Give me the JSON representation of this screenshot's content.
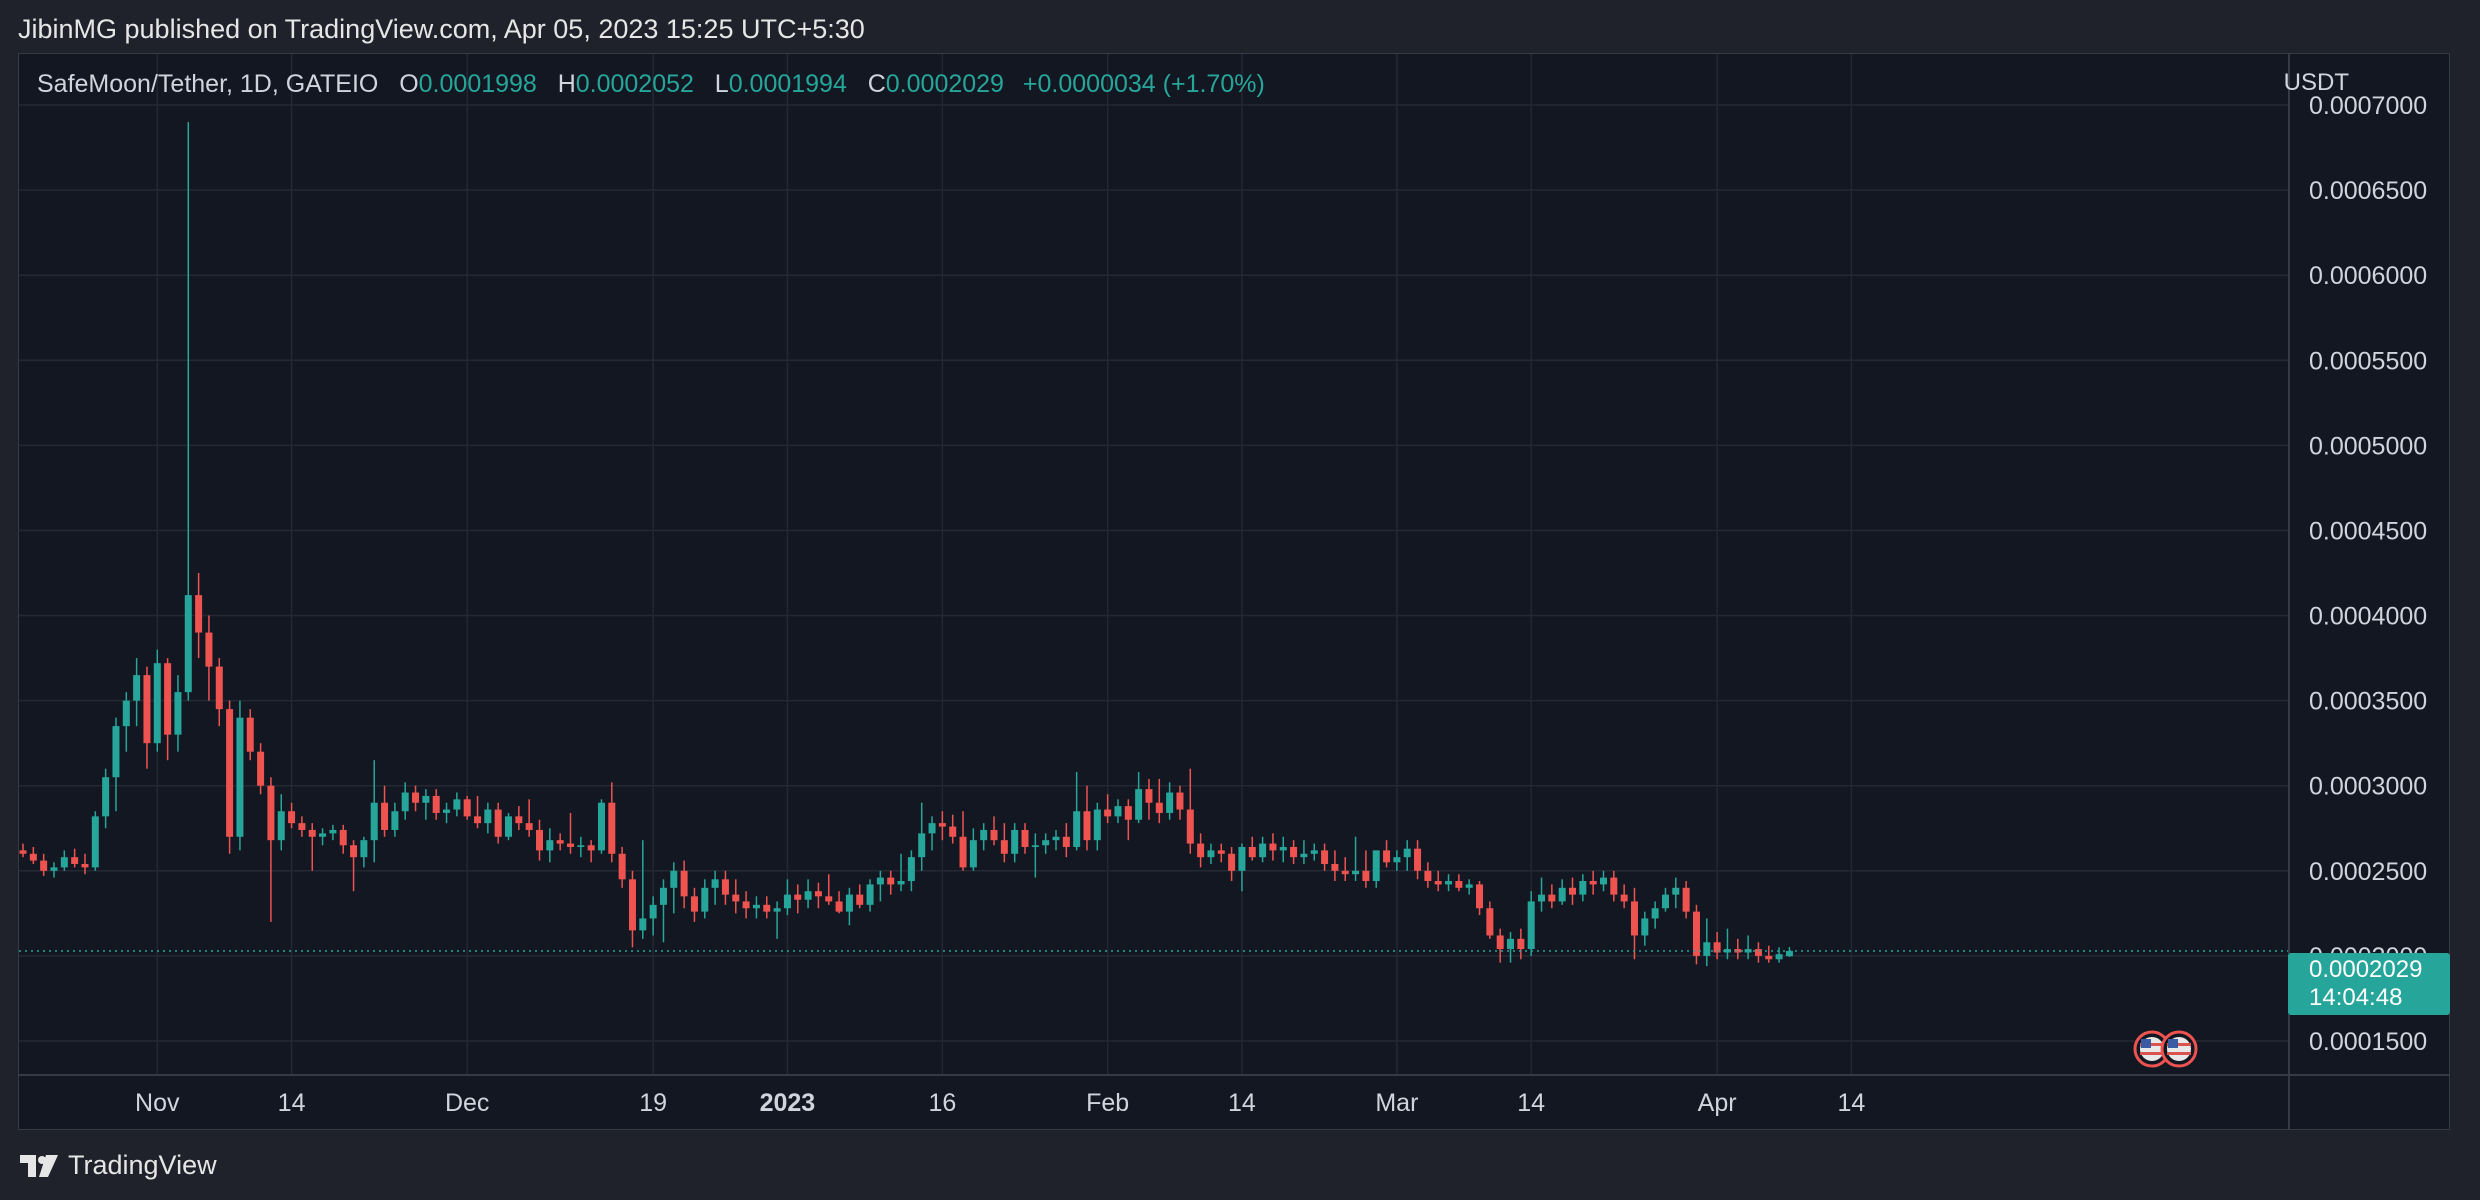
{
  "header": {
    "published": "JibinMG published on TradingView.com, Apr 05, 2023 15:25 UTC+5:30"
  },
  "legend": {
    "symbol": "SafeMoon/Tether, 1D, GATEIO",
    "o_label": "O",
    "o_value": "0.0001998",
    "h_label": "H",
    "h_value": "0.0002052",
    "l_label": "L",
    "l_value": "0.0001994",
    "c_label": "C",
    "c_value": "0.0002029",
    "change": "+0.0000034 (+1.70%)"
  },
  "currency": "USDT",
  "last_price": {
    "value": "0.0002029",
    "countdown": "14:04:48"
  },
  "footer": {
    "brand": "TradingView"
  },
  "colors": {
    "up": "#26a69a",
    "down": "#ef5350",
    "grid": "#242833",
    "axis_text": "#d1d4dc",
    "background": "#131722"
  },
  "chart_data": {
    "type": "candlestick",
    "ylim": [
      0.00013,
      0.00073
    ],
    "yticks": [
      0.00015,
      0.0002,
      0.00025,
      0.0003,
      0.00035,
      0.0004,
      0.00045,
      0.0005,
      0.00055,
      0.0006,
      0.00065,
      0.0007
    ],
    "ytick_labels": [
      "0.0001500",
      "0.0002000",
      "0.0002500",
      "0.0003000",
      "0.0003500",
      "0.0004000",
      "0.0004500",
      "0.0005000",
      "0.0005500",
      "0.0006000",
      "0.0006500",
      "0.0007000"
    ],
    "xtick_labels": [
      {
        "label": "Nov",
        "index": 13
      },
      {
        "label": "14",
        "index": 26
      },
      {
        "label": "Dec",
        "index": 43
      },
      {
        "label": "19",
        "index": 61
      },
      {
        "label": "2023",
        "index": 74,
        "bold": true
      },
      {
        "label": "16",
        "index": 89
      },
      {
        "label": "Feb",
        "index": 105
      },
      {
        "label": "14",
        "index": 118
      },
      {
        "label": "Mar",
        "index": 133
      },
      {
        "label": "14",
        "index": 146
      },
      {
        "label": "Apr",
        "index": 164
      },
      {
        "label": "14",
        "index": 177
      }
    ],
    "last_price": 0.0002029,
    "ohlc": [
      [
        0.000262,
        0.000266,
        0.000258,
        0.00026
      ],
      [
        0.00026,
        0.000264,
        0.000254,
        0.000256
      ],
      [
        0.000256,
        0.00026,
        0.000247,
        0.00025
      ],
      [
        0.00025,
        0.000255,
        0.000246,
        0.000252
      ],
      [
        0.000252,
        0.000262,
        0.00025,
        0.000258
      ],
      [
        0.000258,
        0.000263,
        0.000252,
        0.000254
      ],
      [
        0.000254,
        0.00026,
        0.000248,
        0.000252
      ],
      [
        0.000252,
        0.000285,
        0.00025,
        0.000282
      ],
      [
        0.000282,
        0.00031,
        0.000275,
        0.000305
      ],
      [
        0.000305,
        0.00034,
        0.000285,
        0.000335
      ],
      [
        0.000335,
        0.000355,
        0.00032,
        0.00035
      ],
      [
        0.00035,
        0.000375,
        0.000335,
        0.000365
      ],
      [
        0.000365,
        0.00037,
        0.00031,
        0.000325
      ],
      [
        0.000325,
        0.00038,
        0.00032,
        0.000372
      ],
      [
        0.000372,
        0.000375,
        0.000315,
        0.00033
      ],
      [
        0.00033,
        0.000365,
        0.00032,
        0.000355
      ],
      [
        0.000355,
        0.00069,
        0.00035,
        0.000412
      ],
      [
        0.000412,
        0.000425,
        0.000375,
        0.00039
      ],
      [
        0.00039,
        0.0004,
        0.00035,
        0.00037
      ],
      [
        0.00037,
        0.000375,
        0.000335,
        0.000345
      ],
      [
        0.000345,
        0.00035,
        0.00026,
        0.00027
      ],
      [
        0.00027,
        0.00035,
        0.000262,
        0.00034
      ],
      [
        0.00034,
        0.000345,
        0.000315,
        0.00032
      ],
      [
        0.00032,
        0.000325,
        0.000295,
        0.0003
      ],
      [
        0.0003,
        0.000305,
        0.00022,
        0.000268
      ],
      [
        0.000268,
        0.000295,
        0.000262,
        0.000285
      ],
      [
        0.000285,
        0.00029,
        0.000275,
        0.000278
      ],
      [
        0.000278,
        0.000282,
        0.00027,
        0.000274
      ],
      [
        0.000274,
        0.000278,
        0.00025,
        0.00027
      ],
      [
        0.00027,
        0.000275,
        0.000265,
        0.000272
      ],
      [
        0.000272,
        0.000277,
        0.000268,
        0.000274
      ],
      [
        0.000274,
        0.000277,
        0.00026,
        0.000265
      ],
      [
        0.000265,
        0.000268,
        0.000238,
        0.000258
      ],
      [
        0.000258,
        0.00027,
        0.000252,
        0.000268
      ],
      [
        0.000268,
        0.000315,
        0.000255,
        0.00029
      ],
      [
        0.00029,
        0.0003,
        0.00027,
        0.000274
      ],
      [
        0.000274,
        0.00029,
        0.00027,
        0.000285
      ],
      [
        0.000285,
        0.000302,
        0.00028,
        0.000296
      ],
      [
        0.000296,
        0.0003,
        0.000285,
        0.00029
      ],
      [
        0.00029,
        0.000298,
        0.00028,
        0.000294
      ],
      [
        0.000294,
        0.000298,
        0.00028,
        0.000284
      ],
      [
        0.000284,
        0.00029,
        0.000278,
        0.000286
      ],
      [
        0.000286,
        0.000296,
        0.000282,
        0.000292
      ],
      [
        0.000292,
        0.000294,
        0.00028,
        0.000282
      ],
      [
        0.000282,
        0.000294,
        0.000275,
        0.000278
      ],
      [
        0.000278,
        0.00029,
        0.000272,
        0.000286
      ],
      [
        0.000286,
        0.00029,
        0.000266,
        0.00027
      ],
      [
        0.00027,
        0.000284,
        0.000268,
        0.000282
      ],
      [
        0.000282,
        0.000288,
        0.000274,
        0.000278
      ],
      [
        0.000278,
        0.000292,
        0.00027,
        0.000274
      ],
      [
        0.000274,
        0.00028,
        0.000256,
        0.000262
      ],
      [
        0.000262,
        0.000275,
        0.000255,
        0.000268
      ],
      [
        0.000268,
        0.000272,
        0.000262,
        0.000266
      ],
      [
        0.000266,
        0.000284,
        0.00026,
        0.000264
      ],
      [
        0.000264,
        0.00027,
        0.000258,
        0.000265
      ],
      [
        0.000265,
        0.000268,
        0.000255,
        0.000262
      ],
      [
        0.000262,
        0.000292,
        0.00026,
        0.00029
      ],
      [
        0.00029,
        0.000302,
        0.000255,
        0.00026
      ],
      [
        0.00026,
        0.000264,
        0.00024,
        0.000245
      ],
      [
        0.000245,
        0.00025,
        0.000205,
        0.000215
      ],
      [
        0.000215,
        0.000268,
        0.00021,
        0.000222
      ],
      [
        0.000222,
        0.000235,
        0.000212,
        0.00023
      ],
      [
        0.00023,
        0.000245,
        0.000208,
        0.00024
      ],
      [
        0.00024,
        0.000255,
        0.000225,
        0.00025
      ],
      [
        0.00025,
        0.000256,
        0.000228,
        0.000235
      ],
      [
        0.000235,
        0.00024,
        0.00022,
        0.000226
      ],
      [
        0.000226,
        0.000245,
        0.000222,
        0.00024
      ],
      [
        0.00024,
        0.00025,
        0.00023,
        0.000245
      ],
      [
        0.000245,
        0.00025,
        0.00023,
        0.000236
      ],
      [
        0.000236,
        0.000245,
        0.000225,
        0.000232
      ],
      [
        0.000232,
        0.000238,
        0.000222,
        0.000228
      ],
      [
        0.000228,
        0.000235,
        0.000222,
        0.00023
      ],
      [
        0.00023,
        0.000235,
        0.000222,
        0.000226
      ],
      [
        0.000226,
        0.000232,
        0.00021,
        0.000228
      ],
      [
        0.000228,
        0.000245,
        0.000224,
        0.000236
      ],
      [
        0.000236,
        0.000242,
        0.000225,
        0.000233
      ],
      [
        0.000233,
        0.000245,
        0.000228,
        0.000238
      ],
      [
        0.000238,
        0.000243,
        0.000228,
        0.000235
      ],
      [
        0.000235,
        0.000248,
        0.00023,
        0.000232
      ],
      [
        0.000232,
        0.000238,
        0.000225,
        0.000226
      ],
      [
        0.000226,
        0.00024,
        0.000218,
        0.000236
      ],
      [
        0.000236,
        0.000242,
        0.000228,
        0.00023
      ],
      [
        0.00023,
        0.000245,
        0.000226,
        0.000242
      ],
      [
        0.000242,
        0.00025,
        0.000232,
        0.000246
      ],
      [
        0.000246,
        0.00025,
        0.000236,
        0.000242
      ],
      [
        0.000242,
        0.00026,
        0.000238,
        0.000244
      ],
      [
        0.000244,
        0.000262,
        0.000238,
        0.000258
      ],
      [
        0.000258,
        0.00029,
        0.00025,
        0.000272
      ],
      [
        0.000272,
        0.000282,
        0.000262,
        0.000278
      ],
      [
        0.000278,
        0.000285,
        0.000268,
        0.000276
      ],
      [
        0.000276,
        0.000283,
        0.000266,
        0.00027
      ],
      [
        0.00027,
        0.000285,
        0.00025,
        0.000252
      ],
      [
        0.000252,
        0.000275,
        0.00025,
        0.000268
      ],
      [
        0.000268,
        0.000278,
        0.000262,
        0.000274
      ],
      [
        0.000274,
        0.000282,
        0.000265,
        0.000268
      ],
      [
        0.000268,
        0.000278,
        0.000255,
        0.00026
      ],
      [
        0.00026,
        0.000278,
        0.000255,
        0.000274
      ],
      [
        0.000274,
        0.000278,
        0.00026,
        0.000264
      ],
      [
        0.000264,
        0.000272,
        0.000246,
        0.000265
      ],
      [
        0.000265,
        0.000272,
        0.00026,
        0.000268
      ],
      [
        0.000268,
        0.000274,
        0.000262,
        0.00027
      ],
      [
        0.00027,
        0.000278,
        0.000258,
        0.000264
      ],
      [
        0.000264,
        0.000308,
        0.000262,
        0.000285
      ],
      [
        0.000285,
        0.0003,
        0.000262,
        0.000268
      ],
      [
        0.000268,
        0.00029,
        0.000262,
        0.000286
      ],
      [
        0.000286,
        0.000295,
        0.000278,
        0.000282
      ],
      [
        0.000282,
        0.000292,
        0.000278,
        0.000288
      ],
      [
        0.000288,
        0.000292,
        0.000268,
        0.00028
      ],
      [
        0.00028,
        0.000308,
        0.000278,
        0.000298
      ],
      [
        0.000298,
        0.000304,
        0.00028,
        0.00029
      ],
      [
        0.00029,
        0.000304,
        0.000278,
        0.000284
      ],
      [
        0.000284,
        0.000302,
        0.00028,
        0.000296
      ],
      [
        0.000296,
        0.0003,
        0.00028,
        0.000286
      ],
      [
        0.000286,
        0.00031,
        0.00026,
        0.000266
      ],
      [
        0.000266,
        0.000272,
        0.000252,
        0.000258
      ],
      [
        0.000258,
        0.000266,
        0.000254,
        0.000262
      ],
      [
        0.000262,
        0.000266,
        0.000255,
        0.00026
      ],
      [
        0.00026,
        0.000264,
        0.000244,
        0.00025
      ],
      [
        0.00025,
        0.000266,
        0.000238,
        0.000264
      ],
      [
        0.000264,
        0.00027,
        0.000256,
        0.000258
      ],
      [
        0.000258,
        0.00027,
        0.000255,
        0.000266
      ],
      [
        0.000266,
        0.000272,
        0.000256,
        0.000262
      ],
      [
        0.000262,
        0.00027,
        0.000255,
        0.000264
      ],
      [
        0.000264,
        0.000268,
        0.000254,
        0.000258
      ],
      [
        0.000258,
        0.000268,
        0.000254,
        0.00026
      ],
      [
        0.00026,
        0.000266,
        0.000256,
        0.000262
      ],
      [
        0.000262,
        0.000266,
        0.00025,
        0.000254
      ],
      [
        0.000254,
        0.000262,
        0.000244,
        0.00025
      ],
      [
        0.00025,
        0.000258,
        0.000244,
        0.000248
      ],
      [
        0.000248,
        0.00027,
        0.000244,
        0.00025
      ],
      [
        0.00025,
        0.000262,
        0.00024,
        0.000244
      ],
      [
        0.000244,
        0.000262,
        0.00024,
        0.000262
      ],
      [
        0.000262,
        0.000268,
        0.000252,
        0.000255
      ],
      [
        0.000255,
        0.000262,
        0.00025,
        0.000258
      ],
      [
        0.000258,
        0.000268,
        0.00025,
        0.000263
      ],
      [
        0.000263,
        0.000268,
        0.000245,
        0.00025
      ],
      [
        0.00025,
        0.000255,
        0.00024,
        0.000244
      ],
      [
        0.000244,
        0.00025,
        0.000238,
        0.000242
      ],
      [
        0.000242,
        0.000248,
        0.000238,
        0.000244
      ],
      [
        0.000244,
        0.000248,
        0.000238,
        0.00024
      ],
      [
        0.00024,
        0.000245,
        0.000236,
        0.000242
      ],
      [
        0.000242,
        0.000244,
        0.000224,
        0.000228
      ],
      [
        0.000228,
        0.000232,
        0.00021,
        0.000212
      ],
      [
        0.000212,
        0.000216,
        0.000196,
        0.000204
      ],
      [
        0.000204,
        0.000214,
        0.000196,
        0.00021
      ],
      [
        0.00021,
        0.000216,
        0.000198,
        0.000204
      ],
      [
        0.000204,
        0.000238,
        0.0002,
        0.000232
      ],
      [
        0.000232,
        0.000246,
        0.000226,
        0.000236
      ],
      [
        0.000236,
        0.000242,
        0.000228,
        0.000232
      ],
      [
        0.000232,
        0.000245,
        0.00023,
        0.00024
      ],
      [
        0.00024,
        0.000246,
        0.00023,
        0.000236
      ],
      [
        0.000236,
        0.000248,
        0.000232,
        0.000244
      ],
      [
        0.000244,
        0.00025,
        0.000236,
        0.000242
      ],
      [
        0.000242,
        0.00025,
        0.000238,
        0.000246
      ],
      [
        0.000246,
        0.00025,
        0.000232,
        0.000236
      ],
      [
        0.000236,
        0.000242,
        0.000228,
        0.000232
      ],
      [
        0.000232,
        0.00024,
        0.000198,
        0.000212
      ],
      [
        0.000212,
        0.000226,
        0.000206,
        0.000222
      ],
      [
        0.000222,
        0.000232,
        0.000216,
        0.000228
      ],
      [
        0.000228,
        0.00024,
        0.000226,
        0.000236
      ],
      [
        0.000236,
        0.000246,
        0.000228,
        0.00024
      ],
      [
        0.00024,
        0.000244,
        0.000222,
        0.000226
      ],
      [
        0.000226,
        0.00023,
        0.000195,
        0.0002
      ],
      [
        0.0002,
        0.000222,
        0.000194,
        0.000208
      ],
      [
        0.000208,
        0.000214,
        0.000198,
        0.000202
      ],
      [
        0.000202,
        0.000216,
        0.000198,
        0.000204
      ],
      [
        0.000204,
        0.00021,
        0.000198,
        0.000202
      ],
      [
        0.000202,
        0.000212,
        0.000198,
        0.000204
      ],
      [
        0.000204,
        0.000208,
        0.000196,
        0.0002
      ],
      [
        0.0002,
        0.000206,
        0.000196,
        0.000198
      ],
      [
        0.000198,
        0.000205,
        0.000196,
        0.000201
      ],
      [
        0.0001998,
        0.0002052,
        0.0001994,
        0.0002029
      ]
    ]
  }
}
